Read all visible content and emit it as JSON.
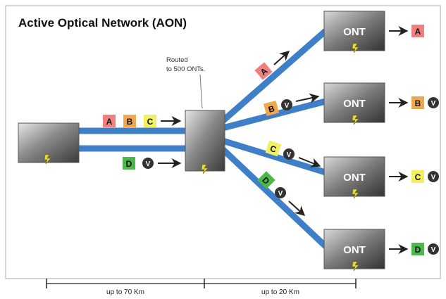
{
  "title": "Active Optical Network (AON)",
  "switch_note": [
    "Routed",
    "to 500 ONTs."
  ],
  "ont_label": "ONT",
  "video_symbol": "V",
  "distances": [
    "up to 70 Km",
    "up to 20 Km"
  ],
  "channels": {
    "A": {
      "label": "A",
      "color": "#f08080"
    },
    "B": {
      "label": "B",
      "color": "#f0a850"
    },
    "C": {
      "label": "C",
      "color": "#f2f060"
    },
    "D": {
      "label": "D",
      "color": "#4cb84c"
    }
  },
  "fiber_color": "#3f7fc8",
  "icons": [
    "arrow-right-icon",
    "video-icon",
    "power-plug-icon"
  ]
}
